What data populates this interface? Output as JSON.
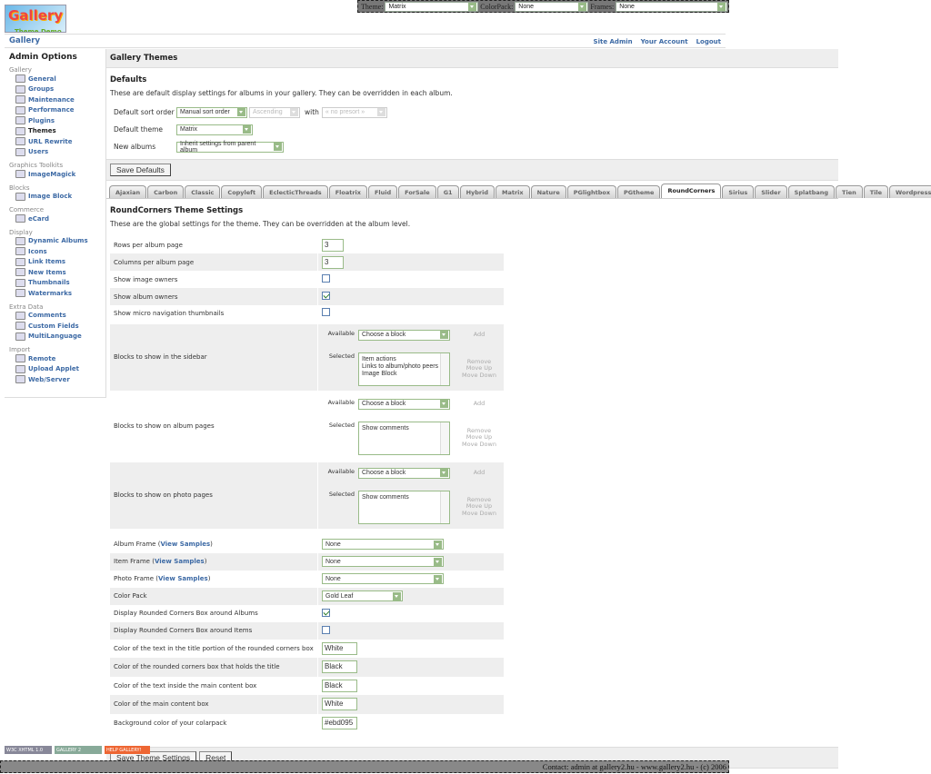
{
  "topbar": {
    "theme_label": "Theme:",
    "theme": "Matrix",
    "colorpack_label": "ColorPack:",
    "colorpack": "None",
    "frames_label": "Frames:",
    "frames": "None"
  },
  "logo": {
    "text": "Gallery",
    "sub": "Theme Demo"
  },
  "nav": {
    "home": "Gallery",
    "links": [
      "Site Admin",
      "Your Account",
      "Logout"
    ]
  },
  "sidebar": {
    "title": "Admin Options",
    "groups": [
      {
        "name": "Gallery",
        "items": [
          "General",
          "Groups",
          "Maintenance",
          "Performance",
          "Plugins",
          "Themes",
          "URL Rewrite",
          "Users"
        ]
      },
      {
        "name": "Graphics Toolkits",
        "items": [
          "ImageMagick"
        ]
      },
      {
        "name": "Blocks",
        "items": [
          "Image Block"
        ]
      },
      {
        "name": "Commerce",
        "items": [
          "eCard"
        ]
      },
      {
        "name": "Display",
        "items": [
          "Dynamic Albums",
          "Icons",
          "Link Items",
          "New Items",
          "Thumbnails",
          "Watermarks"
        ]
      },
      {
        "name": "Extra Data",
        "items": [
          "Comments",
          "Custom Fields",
          "MultiLanguage"
        ]
      },
      {
        "name": "Import",
        "items": [
          "Remote",
          "Upload Applet",
          "Web/Server"
        ]
      }
    ],
    "current": "Themes"
  },
  "main": {
    "title": "Gallery Themes",
    "defaults": {
      "heading": "Defaults",
      "desc": "These are default display settings for albums in your gallery. They can be overridden in each album.",
      "sort_label": "Default sort order",
      "sort": "Manual sort order",
      "direction": "Ascending",
      "with": "with",
      "presort": "« no presort »",
      "theme_label": "Default theme",
      "theme": "Matrix",
      "new_label": "New albums",
      "new": "Inherit settings from parent album",
      "save": "Save Defaults"
    },
    "tabs": [
      "Ajaxian",
      "Carbon",
      "Classic",
      "Copyleft",
      "EclecticThreads",
      "Floatrix",
      "Fluid",
      "ForSale",
      "G1",
      "Hybrid",
      "Matrix",
      "Nature",
      "PGlightbox",
      "PGtheme",
      "RoundCorners",
      "Sirius",
      "Slider",
      "Splatbang",
      "Tien",
      "Tile",
      "WordpressEmbedded"
    ],
    "active_tab": "RoundCorners",
    "settings": {
      "heading": "RoundCorners Theme Settings",
      "desc": "These are the global settings for the theme. They can be overridden at the album level.",
      "rows_label": "Rows per album page",
      "rows": "3",
      "cols_label": "Columns per album page",
      "cols": "3",
      "owners_label": "Show image owners",
      "owners": false,
      "album_owners_label": "Show album owners",
      "album_owners": true,
      "micro_label": "Show micro navigation thumbnails",
      "micro": false,
      "available": "Available",
      "selected": "Selected",
      "choose": "Choose a block",
      "add": "Add",
      "remove": "Remove",
      "up": "Move Up",
      "down": "Move Down",
      "blocks": [
        {
          "label": "Blocks to show in the sidebar",
          "items": [
            "Item actions",
            "Links to album/photo peers",
            "Image Block"
          ]
        },
        {
          "label": "Blocks to show on album pages",
          "items": [
            "Show comments"
          ]
        },
        {
          "label": "Blocks to show on photo pages",
          "items": [
            "Show comments"
          ]
        }
      ],
      "view_samples": "View Samples",
      "album_frame_label": "Album Frame",
      "album_frame": "None",
      "item_frame_label": "Item Frame",
      "item_frame": "None",
      "photo_frame_label": "Photo Frame",
      "photo_frame": "None",
      "colorpack_label": "Color Pack",
      "colorpack": "Gold Leaf",
      "rc_albums_label": "Display Rounded Corners Box around Albums",
      "rc_albums": true,
      "rc_items_label": "Display Rounded Corners Box around Items",
      "rc_items": false,
      "colors": [
        {
          "label": "Color of the text in the title portion of the rounded corners box",
          "value": "White"
        },
        {
          "label": "Color of the rounded corners box that holds the title",
          "value": "Black"
        },
        {
          "label": "Color of the text inside the main content box",
          "value": "Black"
        },
        {
          "label": "Color of the main content box",
          "value": "White"
        },
        {
          "label": "Background color of your colarpack",
          "value": "#ebd095"
        }
      ],
      "save": "Save Theme Settings",
      "reset": "Reset"
    }
  },
  "badges": [
    "W3C XHTML 1.0",
    "GALLERY 2",
    "HELP GALLERY!"
  ],
  "footer": "Contact: admin at gallery2.hu - www.gallery2.hu - (c) 2006"
}
